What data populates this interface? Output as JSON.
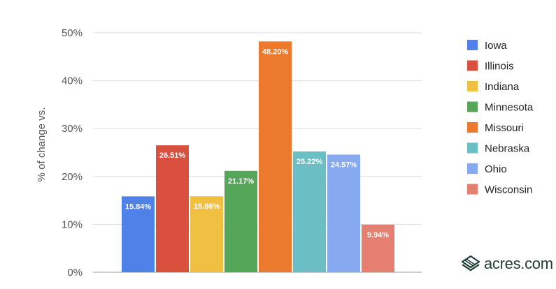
{
  "chart_data": {
    "type": "bar",
    "ylabel": "% of change vs.",
    "ylim": [
      0,
      50
    ],
    "yticks": [
      "0%",
      "10%",
      "20%",
      "30%",
      "40%",
      "50%"
    ],
    "grid": true,
    "legend_position": "right",
    "series": [
      {
        "name": "Iowa",
        "value": 15.84,
        "label": "15.84%",
        "color": "#4f81e8"
      },
      {
        "name": "Illinois",
        "value": 26.51,
        "label": "26.51%",
        "color": "#d9503f"
      },
      {
        "name": "Indiana",
        "value": 15.86,
        "label": "15.86%",
        "color": "#f0c043"
      },
      {
        "name": "Minnesota",
        "value": 21.17,
        "label": "21.17%",
        "color": "#56a65a"
      },
      {
        "name": "Missouri",
        "value": 48.2,
        "label": "48.20%",
        "color": "#ec7a2e"
      },
      {
        "name": "Nebraska",
        "value": 25.22,
        "label": "25.22%",
        "color": "#6bbfc4"
      },
      {
        "name": "Ohio",
        "value": 24.57,
        "label": "24.57%",
        "color": "#86a9f0"
      },
      {
        "name": "Wisconsin",
        "value": 9.94,
        "label": "9.94%",
        "color": "#e57f72"
      }
    ]
  },
  "brand": {
    "name": "acres.com",
    "logo_icon": "acres-logo-icon"
  }
}
